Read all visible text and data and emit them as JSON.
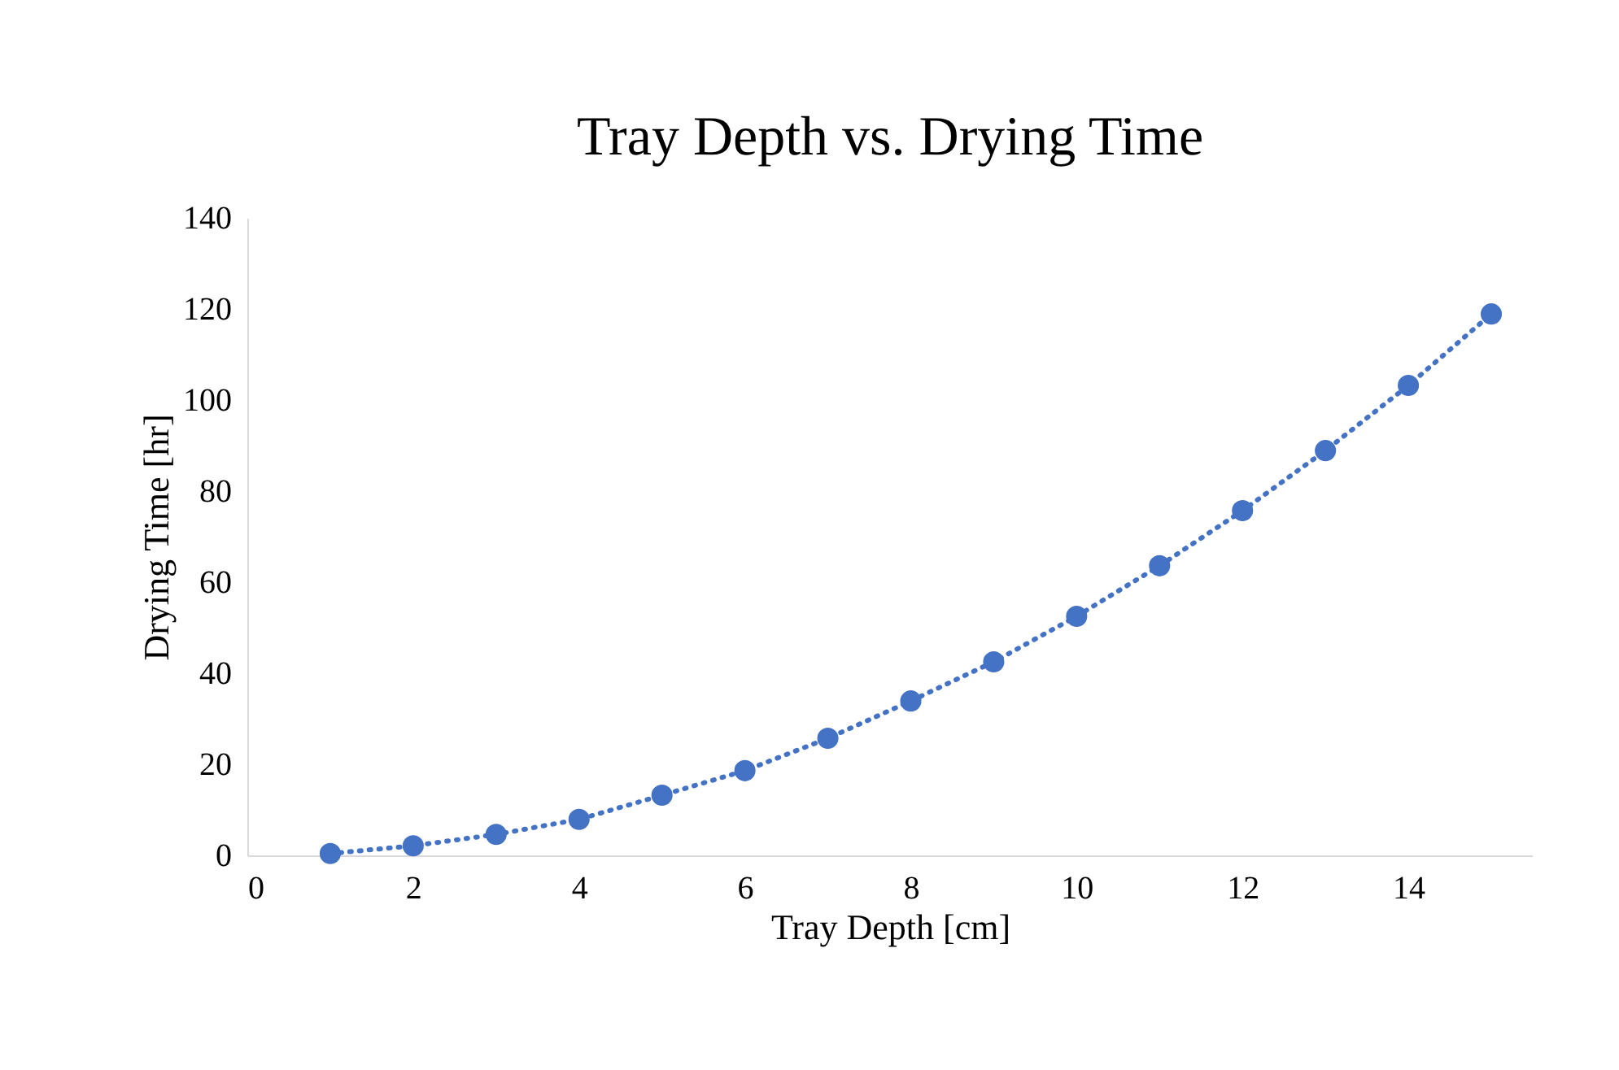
{
  "chart_data": {
    "type": "line",
    "title": "Tray Depth vs. Drying Time",
    "xlabel": "Tray Depth [cm]",
    "ylabel": "Drying Time [hr]",
    "x": [
      1,
      2,
      3,
      4,
      5,
      6,
      7,
      8,
      9,
      10,
      11,
      12,
      13,
      14,
      15
    ],
    "series": [
      {
        "color": "#4472c4",
        "values": [
          0.4,
          2.1,
          4.6,
          7.9,
          13.2,
          18.6,
          25.7,
          33.9,
          42.5,
          52.5,
          63.6,
          75.7,
          88.9,
          103.2,
          118.9
        ]
      }
    ],
    "xlim": [
      0,
      15.5
    ],
    "xticks": [
      0,
      2,
      4,
      6,
      8,
      10,
      12,
      14
    ],
    "ylim": [
      0,
      140
    ],
    "yticks": [
      0,
      20,
      40,
      60,
      80,
      100,
      120,
      140
    ],
    "grid": false,
    "marker": "circle",
    "line_style": "dotted"
  }
}
